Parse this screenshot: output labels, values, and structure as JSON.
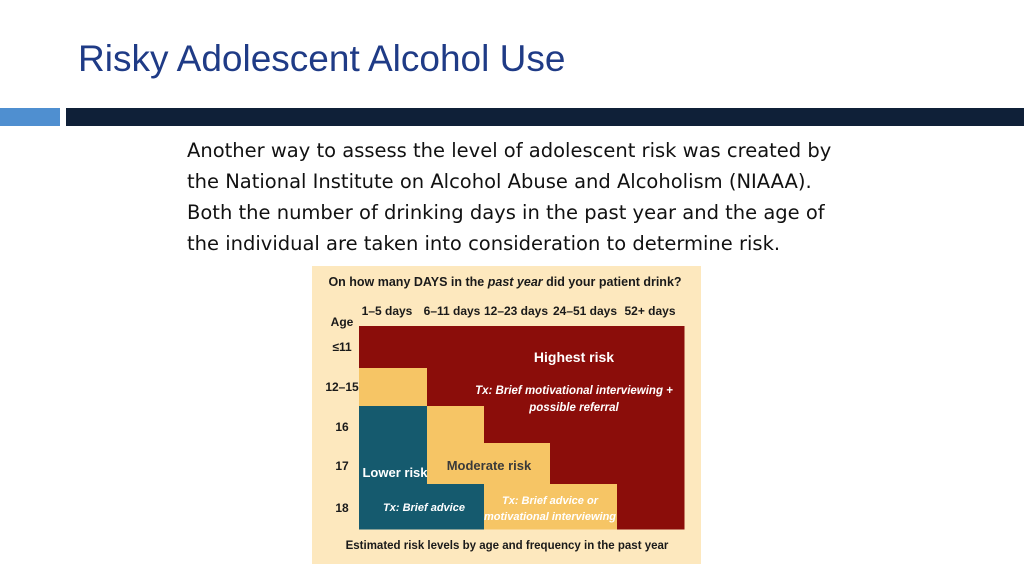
{
  "slide": {
    "title": "Risky Adolescent Alcohol Use",
    "body_lines": [
      "Another way to assess the level of adolescent risk was created by",
      "the National Institute on Alcohol Abuse and Alcoholism (NIAAA).",
      "Both the number of drinking days in the past year and the age of",
      "the individual are taken into consideration to determine risk."
    ]
  },
  "colors": {
    "title": "#1f3b86",
    "accent_bar_light": "#4f8fd0",
    "accent_bar_dark": "#0f2038",
    "figure_background": "#fde8be",
    "highest_risk": "#8b0d0a",
    "moderate_risk": "#f6c565",
    "lower_risk": "#155a6e"
  },
  "figure": {
    "question_prefix": "On how many DAYS in the ",
    "question_emph": "past year",
    "question_suffix": " did your patient drink?",
    "age_label": "Age",
    "day_columns": [
      "1–5 days",
      "6–11 days",
      "12–23 days",
      "24–51 days",
      "52+ days"
    ],
    "age_rows": [
      "≤11",
      "12–15",
      "16",
      "17",
      "18"
    ],
    "cells": [
      [
        "highest",
        "highest",
        "highest",
        "highest",
        "highest"
      ],
      [
        "moderate",
        "highest",
        "highest",
        "highest",
        "highest"
      ],
      [
        "lower",
        "moderate",
        "highest",
        "highest",
        "highest"
      ],
      [
        "lower",
        "moderate",
        "moderate",
        "highest",
        "highest"
      ],
      [
        "lower",
        "lower",
        "moderate",
        "moderate",
        "highest"
      ]
    ],
    "highest_title": "Highest risk",
    "highest_tx_line1": "Tx: Brief motivational interviewing +",
    "highest_tx_line2": "possible referral",
    "moderate_title": "Moderate risk",
    "moderate_tx_line1": "Tx: Brief advice or",
    "moderate_tx_line2": "motivational interviewing",
    "lower_title": "Lower risk",
    "lower_tx": "Tx: Brief advice",
    "caption": "Estimated risk levels by age and frequency in the past year"
  }
}
